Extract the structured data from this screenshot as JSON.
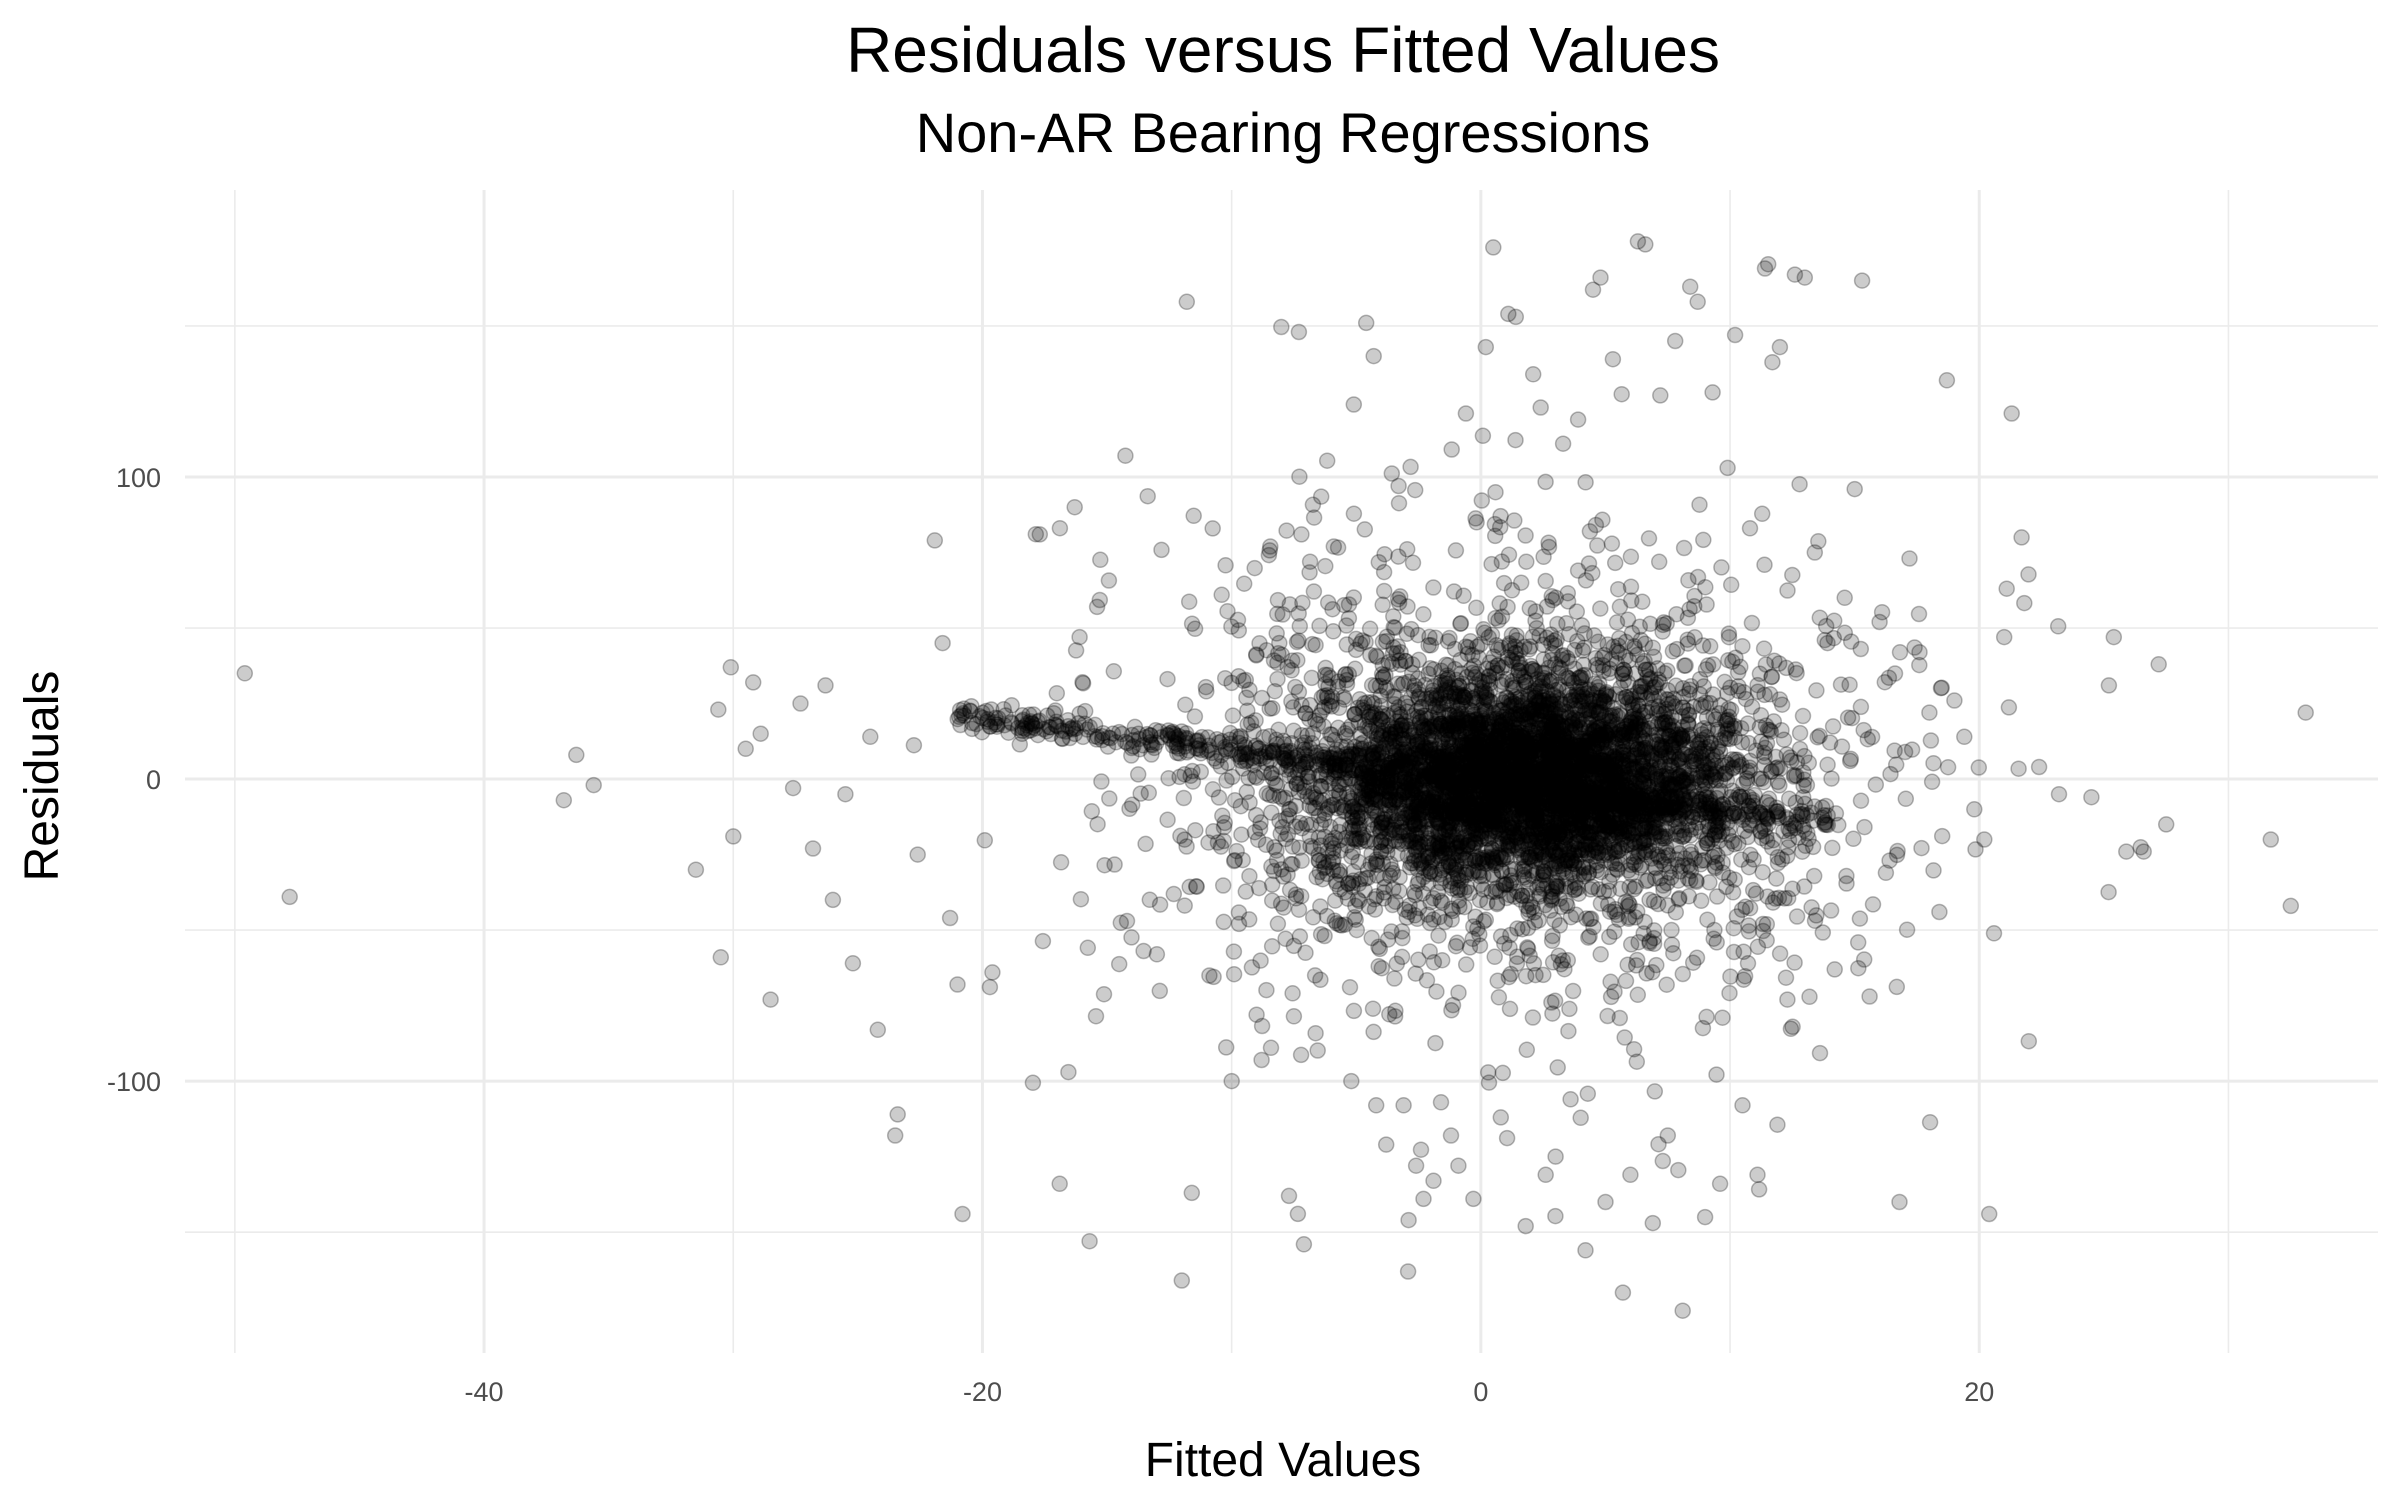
{
  "chart_data": {
    "type": "scatter",
    "title": "Residuals versus Fitted Values",
    "subtitle": "Non-AR Bearing Regressions",
    "xlabel": "Fitted Values",
    "ylabel": "Residuals",
    "xlim": [
      -52,
      36
    ],
    "ylim": [
      -190,
      195
    ],
    "x_ticks": [
      -40,
      -20,
      0,
      20
    ],
    "x_tick_labels": [
      "-40",
      "-20",
      "0",
      "20"
    ],
    "y_ticks": [
      -100,
      0,
      100
    ],
    "y_tick_labels": [
      "-100",
      "0",
      "100"
    ],
    "grid": true,
    "point_color": "#000000",
    "point_opacity": 0.2,
    "legend": "none",
    "outliers": [
      {
        "x": -49.6,
        "y": 35
      },
      {
        "x": -47.8,
        "y": -39
      },
      {
        "x": -36.8,
        "y": -7
      },
      {
        "x": -36.3,
        "y": 8
      },
      {
        "x": -35.6,
        "y": -2
      },
      {
        "x": -31.5,
        "y": -30
      },
      {
        "x": -30.6,
        "y": 23
      },
      {
        "x": -30.5,
        "y": -59
      },
      {
        "x": -30.1,
        "y": 37
      },
      {
        "x": -30.0,
        "y": -19
      },
      {
        "x": -29.5,
        "y": 10
      },
      {
        "x": -29.2,
        "y": 32
      },
      {
        "x": -28.9,
        "y": 15
      },
      {
        "x": -28.5,
        "y": -73
      },
      {
        "x": -27.6,
        "y": -3
      },
      {
        "x": -27.3,
        "y": 25
      },
      {
        "x": -26.8,
        "y": -23
      },
      {
        "x": -26.3,
        "y": 31
      },
      {
        "x": -26.0,
        "y": -40
      },
      {
        "x": -25.5,
        "y": -5
      },
      {
        "x": -25.2,
        "y": -61
      },
      {
        "x": -24.5,
        "y": 14
      },
      {
        "x": -24.2,
        "y": -83
      },
      {
        "x": -23.5,
        "y": -118
      },
      {
        "x": -23.4,
        "y": -111
      },
      {
        "x": -22.6,
        "y": -25
      },
      {
        "x": -21.6,
        "y": 45
      },
      {
        "x": -21.3,
        "y": -46
      },
      {
        "x": -21.0,
        "y": -68
      },
      {
        "x": -20.8,
        "y": -144
      },
      {
        "x": -19.8,
        "y": 19
      },
      {
        "x": -19.6,
        "y": -64
      },
      {
        "x": -17.7,
        "y": 81
      },
      {
        "x": -17.4,
        "y": 21
      },
      {
        "x": -16.9,
        "y": -134
      },
      {
        "x": -16.3,
        "y": 90
      },
      {
        "x": -16.1,
        "y": 47
      },
      {
        "x": -15.7,
        "y": -153
      },
      {
        "x": -15.4,
        "y": 57
      },
      {
        "x": -14.2,
        "y": -47
      },
      {
        "x": -13.0,
        "y": -58
      },
      {
        "x": -12.0,
        "y": -166
      },
      {
        "x": -11.8,
        "y": 158
      },
      {
        "x": -11.6,
        "y": -137
      },
      {
        "x": -10.4,
        "y": 61
      },
      {
        "x": -10.0,
        "y": -100
      },
      {
        "x": -9.0,
        "y": -78
      },
      {
        "x": -8.8,
        "y": -93
      },
      {
        "x": -7.7,
        "y": -138
      },
      {
        "x": -7.3,
        "y": 148
      },
      {
        "x": -7.2,
        "y": 81
      },
      {
        "x": -7.1,
        "y": -154
      },
      {
        "x": -5.9,
        "y": 77
      },
      {
        "x": -5.2,
        "y": -100
      },
      {
        "x": -5.1,
        "y": 124
      },
      {
        "x": -4.6,
        "y": 151
      },
      {
        "x": -4.3,
        "y": 140
      },
      {
        "x": -4.2,
        "y": -108
      },
      {
        "x": -3.8,
        "y": -121
      },
      {
        "x": -3.3,
        "y": 97
      },
      {
        "x": -3.1,
        "y": -108
      },
      {
        "x": -2.9,
        "y": -146
      },
      {
        "x": -2.6,
        "y": -128
      },
      {
        "x": -2.3,
        "y": -139
      },
      {
        "x": -1.9,
        "y": -133
      },
      {
        "x": -1.6,
        "y": -107
      },
      {
        "x": -1.2,
        "y": -118
      },
      {
        "x": -0.9,
        "y": -128
      },
      {
        "x": -0.6,
        "y": 121
      },
      {
        "x": -0.3,
        "y": -139
      },
      {
        "x": 0.2,
        "y": 143
      },
      {
        "x": 0.5,
        "y": 176
      },
      {
        "x": 0.8,
        "y": -112
      },
      {
        "x": 1.1,
        "y": 154
      },
      {
        "x": 1.4,
        "y": 153
      },
      {
        "x": 1.8,
        "y": -148
      },
      {
        "x": 2.1,
        "y": 134
      },
      {
        "x": 2.4,
        "y": 123
      },
      {
        "x": 2.6,
        "y": -131
      },
      {
        "x": 3.0,
        "y": -125
      },
      {
        "x": 3.3,
        "y": 111
      },
      {
        "x": 3.6,
        "y": -106
      },
      {
        "x": 3.9,
        "y": 119
      },
      {
        "x": 4.2,
        "y": -156
      },
      {
        "x": 4.5,
        "y": 162
      },
      {
        "x": 4.8,
        "y": 166
      },
      {
        "x": 5.0,
        "y": -140
      },
      {
        "x": 5.3,
        "y": 139
      },
      {
        "x": 5.7,
        "y": -170
      },
      {
        "x": 6.0,
        "y": -131
      },
      {
        "x": 6.3,
        "y": 178
      },
      {
        "x": 6.6,
        "y": 177
      },
      {
        "x": 6.9,
        "y": -147
      },
      {
        "x": 7.2,
        "y": 127
      },
      {
        "x": 7.5,
        "y": -118
      },
      {
        "x": 7.8,
        "y": 145
      },
      {
        "x": 8.1,
        "y": -176
      },
      {
        "x": 8.4,
        "y": 163
      },
      {
        "x": 8.7,
        "y": 158
      },
      {
        "x": 9.0,
        "y": -145
      },
      {
        "x": 9.3,
        "y": 128
      },
      {
        "x": 9.6,
        "y": -134
      },
      {
        "x": 9.9,
        "y": 103
      },
      {
        "x": 10.2,
        "y": 147
      },
      {
        "x": 10.5,
        "y": -108
      },
      {
        "x": 10.8,
        "y": 83
      },
      {
        "x": 11.1,
        "y": -131
      },
      {
        "x": 11.4,
        "y": 169
      },
      {
        "x": 11.7,
        "y": 138
      },
      {
        "x": 12.0,
        "y": 143
      },
      {
        "x": 12.3,
        "y": -73
      },
      {
        "x": 12.6,
        "y": 167
      },
      {
        "x": 13.0,
        "y": 166
      },
      {
        "x": 13.4,
        "y": 75
      },
      {
        "x": 13.8,
        "y": 46
      },
      {
        "x": 14.2,
        "y": -63
      },
      {
        "x": 14.6,
        "y": 60
      },
      {
        "x": 15.0,
        "y": 96
      },
      {
        "x": 15.3,
        "y": 165
      },
      {
        "x": 15.6,
        "y": -72
      },
      {
        "x": 16.0,
        "y": 52
      },
      {
        "x": 16.4,
        "y": -27
      },
      {
        "x": 16.8,
        "y": -140
      },
      {
        "x": 17.2,
        "y": 73
      },
      {
        "x": 17.6,
        "y": 42
      },
      {
        "x": 18.0,
        "y": 22
      },
      {
        "x": 18.4,
        "y": -44
      },
      {
        "x": 18.7,
        "y": 132
      },
      {
        "x": 19.0,
        "y": 26
      },
      {
        "x": 19.4,
        "y": 14
      },
      {
        "x": 19.8,
        "y": -10
      },
      {
        "x": 20.2,
        "y": -20
      },
      {
        "x": 20.4,
        "y": -144
      },
      {
        "x": 21.0,
        "y": 47
      },
      {
        "x": 21.1,
        "y": 63
      },
      {
        "x": 21.3,
        "y": 121
      },
      {
        "x": 21.7,
        "y": 80
      },
      {
        "x": 22.4,
        "y": 4
      },
      {
        "x": 23.2,
        "y": -5
      },
      {
        "x": 24.5,
        "y": -6
      },
      {
        "x": 25.2,
        "y": 31
      },
      {
        "x": 25.4,
        "y": 47
      },
      {
        "x": 25.9,
        "y": -24
      },
      {
        "x": 26.6,
        "y": -24
      },
      {
        "x": 27.2,
        "y": 38
      },
      {
        "x": 27.5,
        "y": -15
      },
      {
        "x": 31.7,
        "y": -20
      },
      {
        "x": 32.5,
        "y": -42
      },
      {
        "x": 33.1,
        "y": 22
      }
    ]
  }
}
